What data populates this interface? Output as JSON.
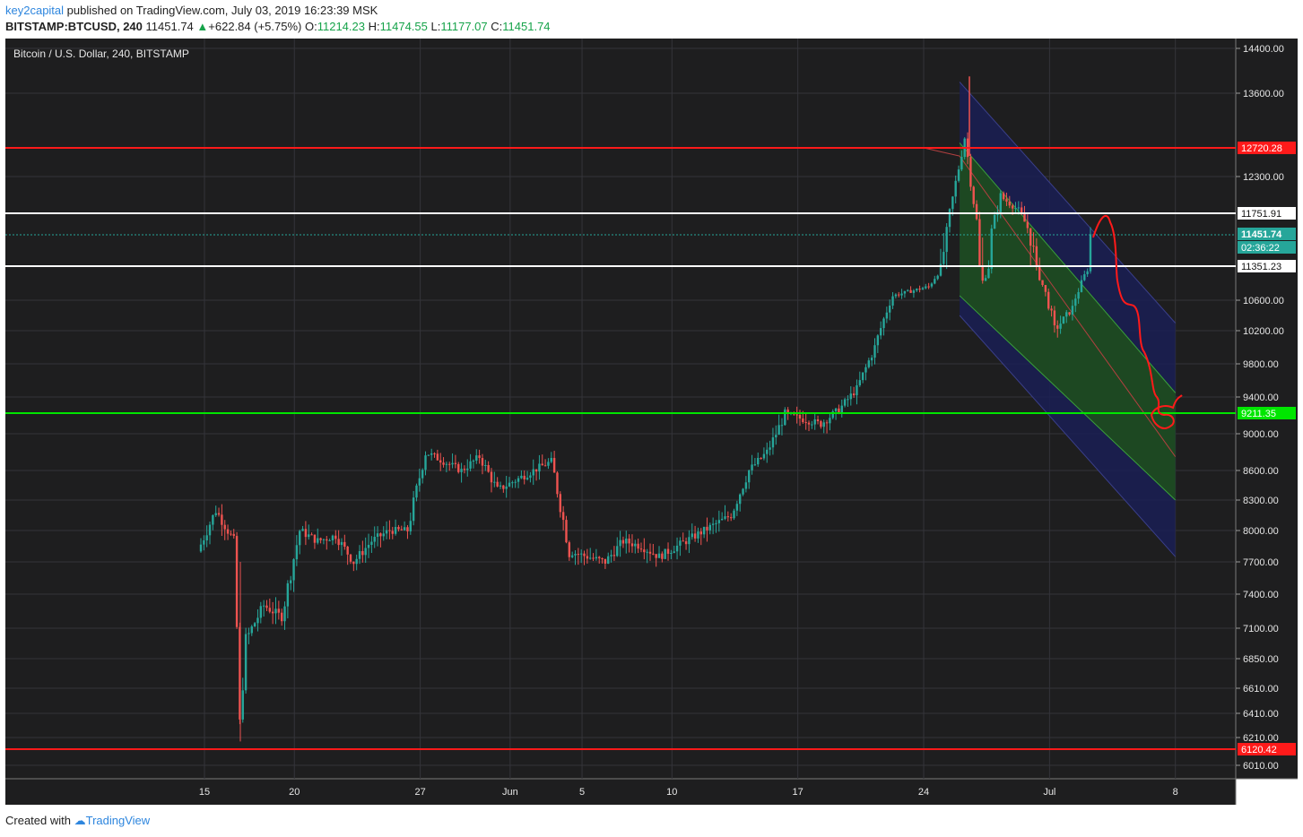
{
  "header": {
    "author": "key2capital",
    "published_text": "published on TradingView.com, July 03, 2019 16:23:39 MSK",
    "symbol": "BITSTAMP:BTCUSD, 240",
    "last": "11451.74",
    "change": "+622.84 (+5.75%)",
    "o_label": "O:",
    "o_value": "11214.23",
    "h_label": "H:",
    "h_value": "11474.55",
    "l_label": "L:",
    "l_value": "11177.07",
    "c_label": "C:",
    "c_value": "11451.74"
  },
  "footer": {
    "created_with": "Created with",
    "brand": "TradingView"
  },
  "colors": {
    "bg": "#1e1e1f",
    "grid": "#34343a",
    "up": "#26a69a",
    "down": "#ef5350",
    "resistance_red": "#ff1a1a",
    "support_green": "#00e600",
    "white_line": "#ffffff",
    "channel_outer": "#1a1f55",
    "channel_inner": "#1e4d1e",
    "drawing": "#ff1a1a"
  },
  "chart_data": {
    "type": "candlestick",
    "title": "Bitcoin / U.S. Dollar, 240, BITSTAMP",
    "price_ticks": [
      14400,
      13600,
      12300,
      10600,
      10200,
      9800,
      9400,
      9000,
      8600,
      8300,
      8000,
      7700,
      7400,
      7100,
      6850,
      6610,
      6410,
      6210,
      6010
    ],
    "x_ticks": [
      "15",
      "20",
      "27",
      "Jun",
      "5",
      "10",
      "17",
      "24",
      "Jul",
      "8"
    ],
    "horizontal_levels": [
      {
        "price": 12720.28,
        "label": "12720.28",
        "color": "red"
      },
      {
        "price": 11751.91,
        "label": "11751.91",
        "color": "white"
      },
      {
        "price": 11351.23,
        "label": "11351.23",
        "color": "white"
      },
      {
        "price": 9211.35,
        "label": "9211.35",
        "color": "green"
      },
      {
        "price": 6120.42,
        "label": "6120.42",
        "color": "red"
      }
    ],
    "last_price": {
      "price": 11451.74,
      "label": "11451.74",
      "countdown": "02:36:22"
    },
    "anchors": [
      [
        "15",
        7800
      ],
      [
        "16",
        8200
      ],
      [
        "17a",
        7900
      ],
      [
        "17b",
        6300
      ],
      [
        "17c",
        7000
      ],
      [
        "18",
        7300
      ],
      [
        "19",
        7200
      ],
      [
        "20",
        8000
      ],
      [
        "21",
        7900
      ],
      [
        "22",
        7950
      ],
      [
        "23",
        7700
      ],
      [
        "24",
        7900
      ],
      [
        "25",
        8000
      ],
      [
        "26",
        8000
      ],
      [
        "27",
        8800
      ],
      [
        "28",
        8700
      ],
      [
        "29",
        8600
      ],
      [
        "30",
        8750
      ],
      [
        "31",
        8400
      ],
      [
        "Jun",
        8500
      ],
      [
        "2",
        8600
      ],
      [
        "3",
        8700
      ],
      [
        "4",
        7800
      ],
      [
        "5",
        7750
      ],
      [
        "6",
        7700
      ],
      [
        "7",
        7900
      ],
      [
        "8",
        7850
      ],
      [
        "9",
        7750
      ],
      [
        "10",
        7850
      ],
      [
        "11",
        7950
      ],
      [
        "12",
        8050
      ],
      [
        "13",
        8150
      ],
      [
        "14",
        8600
      ],
      [
        "15b",
        8800
      ],
      [
        "16",
        9200
      ],
      [
        "17",
        9150
      ],
      [
        "18",
        9100
      ],
      [
        "19",
        9250
      ],
      [
        "20",
        9500
      ],
      [
        "21",
        10000
      ],
      [
        "22",
        10700
      ],
      [
        "23",
        10800
      ],
      [
        "24",
        10900
      ],
      [
        "25",
        11500
      ],
      [
        "26",
        12900
      ],
      [
        "27",
        11000
      ],
      [
        "28",
        12000
      ],
      [
        "29",
        11800
      ],
      [
        "30",
        11300
      ],
      [
        "Jul1",
        10200
      ],
      [
        "2",
        10500
      ],
      [
        "3",
        11451.74
      ]
    ],
    "channel": {
      "outer_top": [
        [
          "26",
          13800
        ],
        [
          "8",
          10300
        ]
      ],
      "inner_top": [
        [
          "26",
          12800
        ],
        [
          "8",
          9450
        ]
      ],
      "mid": [
        [
          "26",
          12600
        ],
        [
          "8",
          8750
        ]
      ],
      "inner_bottom": [
        [
          "26",
          10700
        ],
        [
          "8",
          8300
        ]
      ],
      "outer_bottom": [
        [
          "26",
          10400
        ],
        [
          "8",
          7750
        ]
      ]
    }
  }
}
